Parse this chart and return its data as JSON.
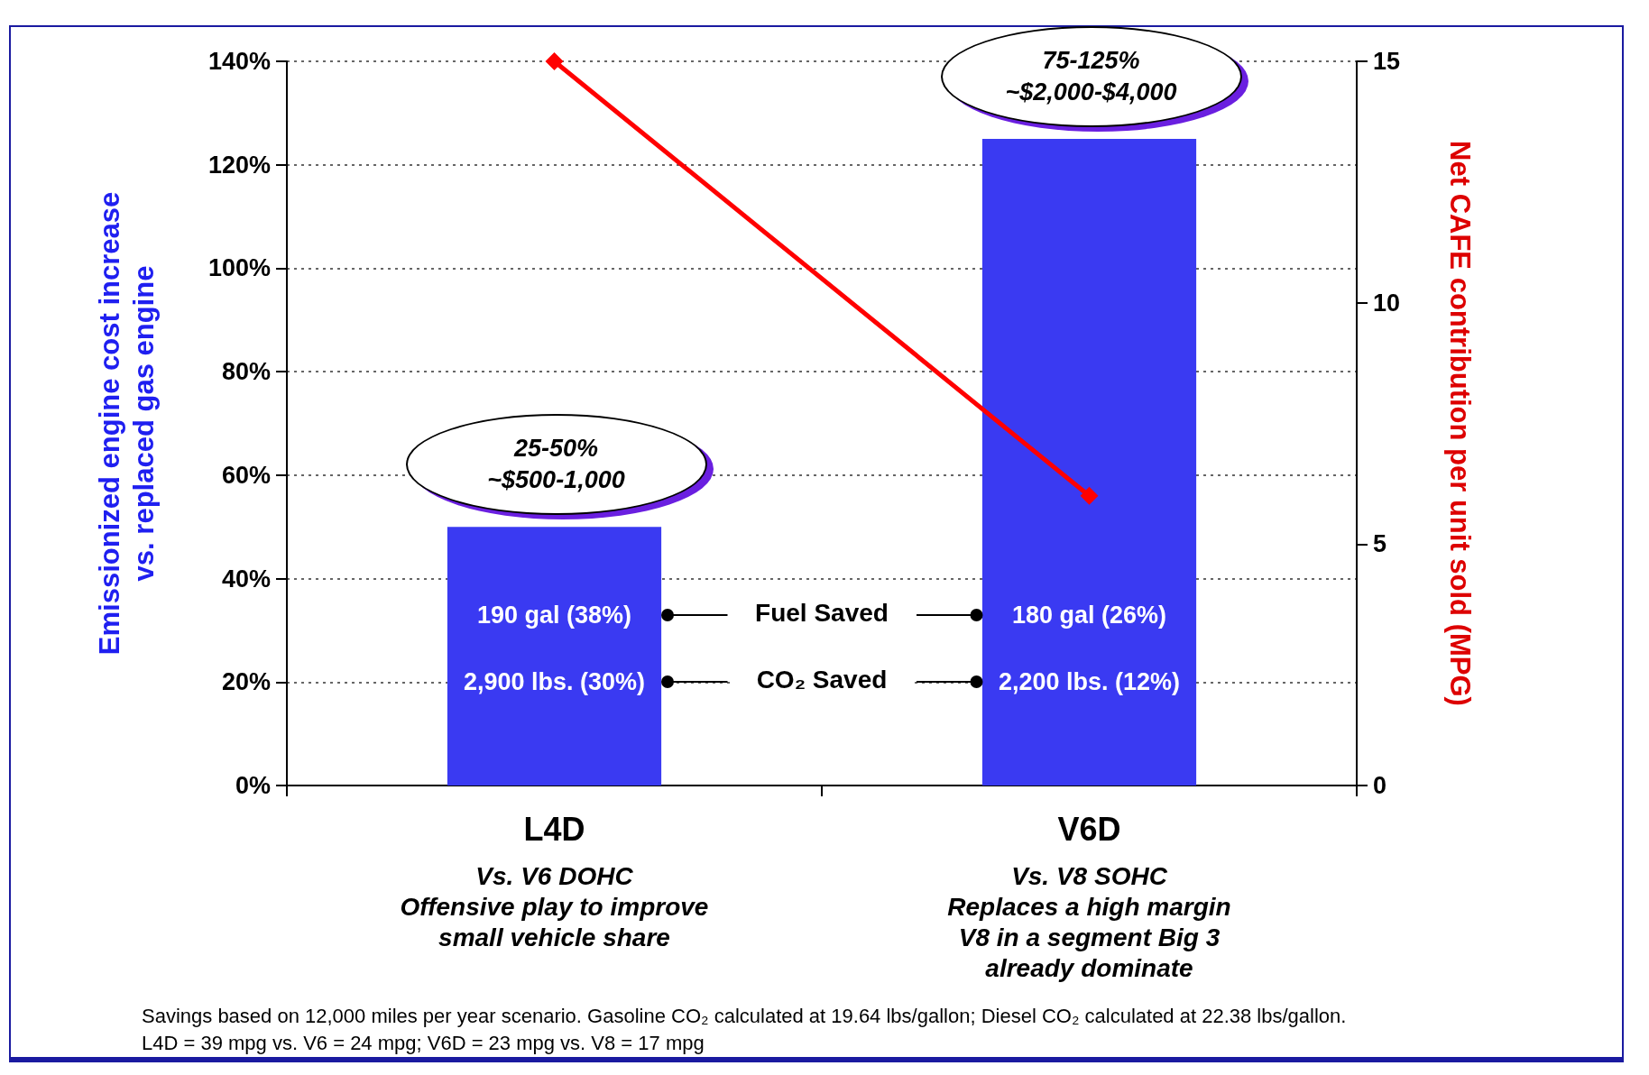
{
  "chart_data": {
    "type": "bar",
    "categories": [
      "L4D",
      "V6D"
    ],
    "series": [
      {
        "color": "#3a3af2",
        "values": [
          50,
          125
        ]
      },
      {
        "type": "line",
        "axis": "y2",
        "color": "#ff0000",
        "values": [
          15,
          6
        ]
      }
    ],
    "ylabel": "Emissionized engine cost increase\nvs. replaced gas engine",
    "y2label": "Net CAFE contribution per unit sold (MPG)",
    "ylim": [
      0,
      140
    ],
    "yticks": [
      {
        "value": 0,
        "label": "0%"
      },
      {
        "value": 20,
        "label": "20%"
      },
      {
        "value": 40,
        "label": "40%"
      },
      {
        "value": 60,
        "label": "60%"
      },
      {
        "value": 80,
        "label": "80%"
      },
      {
        "value": 100,
        "label": "100%"
      },
      {
        "value": 120,
        "label": "120%"
      },
      {
        "value": 140,
        "label": "140%"
      }
    ],
    "y2lim": [
      0,
      15
    ],
    "y2ticks": [
      0,
      5,
      10,
      15
    ],
    "grid": "y",
    "marker": "diamond",
    "line_style": "solid",
    "annotations": [
      {
        "text": "25-50%\n~$500-1,000",
        "x": "L4D",
        "y": 50
      },
      {
        "text": "75-125%\n~$2,000-$4,000",
        "x": "V6D",
        "y": 125
      },
      "190 gal (38%)",
      "2,900 lbs. (30%)",
      "180 gal (26%)",
      "2,200 lbs. (12%)",
      "Fuel Saved",
      "CO₂ Saved",
      "Vs. V6 DOHC\nOffensive play to improve\nsmall vehicle share",
      "Vs. V8 SOHC\nReplaces a high margin\nV8 in a segment Big 3\nalready dominate",
      "Savings based on 12,000 miles per year scenario. Gasoline CO₂ calculated at 19.64 lbs/gallon; Diesel CO₂ calculated at 22.38 lbs/gallon.\nL4D = 39 mpg vs. V6 = 24 mpg; V6D = 23 mpg vs. V8 = 17 mpg"
    ]
  }
}
